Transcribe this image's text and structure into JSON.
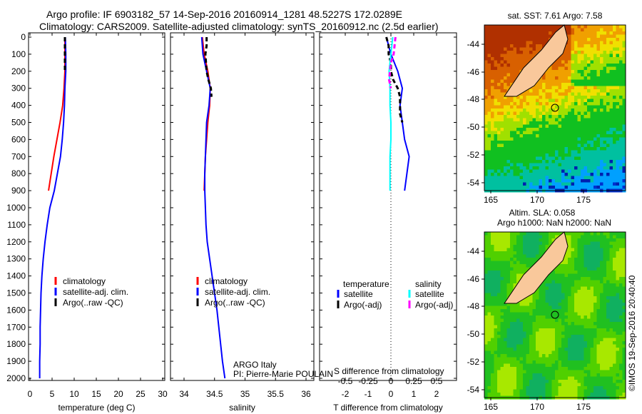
{
  "title": {
    "line1": "Argo profile: IF 6903182_57 14-Sep-2016 20160914_1281 48.5227S 172.0289E",
    "line2": "Climatology: CARS2009. Satellite-adjusted climatology: synTS_20160912.nc (2.5d earlier)"
  },
  "colors": {
    "climatology": "#ff0000",
    "satellite": "#0000ff",
    "argo": "#000000",
    "sal_satellite": "#00ffff",
    "sal_argo": "#ff00ff",
    "land": "#f9c89b"
  },
  "chart_data": [
    {
      "type": "line",
      "xlabel": "temperature (deg C)",
      "ylabel": "",
      "xlim": [
        -1,
        31
      ],
      "ylim": [
        2000,
        0
      ],
      "xticks": [
        "0",
        "5",
        "10",
        "15",
        "20",
        "25",
        "30"
      ],
      "yticks": [
        "0",
        "100",
        "200",
        "300",
        "400",
        "500",
        "600",
        "700",
        "800",
        "900",
        "1000",
        "1100",
        "1200",
        "1300",
        "1400",
        "1500",
        "1600",
        "1700",
        "1800",
        "1900",
        "2000"
      ],
      "legend": [
        "climatology",
        "satellite-adj. clim.",
        "Argo(..raw -QC)"
      ],
      "series": [
        {
          "name": "climatology",
          "depth": [
            0,
            100,
            200,
            300,
            400,
            500,
            600,
            700,
            800,
            900
          ],
          "values": [
            7.9,
            7.9,
            7.9,
            7.7,
            7.4,
            6.8,
            6.1,
            5.4,
            4.8,
            4.2
          ]
        },
        {
          "name": "satellite-adj. clim.",
          "depth": [
            0,
            100,
            200,
            300,
            400,
            500,
            600,
            700,
            800,
            900,
            1000,
            1100,
            1200,
            1300,
            1400,
            1500,
            1600,
            1700,
            1800,
            1900,
            2000
          ],
          "values": [
            8.0,
            8.1,
            8.1,
            7.9,
            7.8,
            7.6,
            7.3,
            6.9,
            6.2,
            5.5,
            4.5,
            3.9,
            3.4,
            3.0,
            2.7,
            2.5,
            2.4,
            2.3,
            2.3,
            2.2,
            2.2
          ]
        },
        {
          "name": "Argo(..raw -QC)",
          "depth": [
            0,
            50,
            100,
            150,
            200
          ],
          "values": [
            7.9,
            7.9,
            7.9,
            7.9,
            7.9
          ]
        }
      ]
    },
    {
      "type": "line",
      "xlabel": "salinity",
      "xlim": [
        33.78,
        36.13
      ],
      "ylim": [
        2000,
        0
      ],
      "xticks": [
        "34",
        "34.5",
        "35",
        "35.5",
        "36"
      ],
      "legend": [
        "climatology",
        "satellite-adj. clim.",
        "Argo(..raw -QC)"
      ],
      "annotation": [
        "ARGO Italy",
        "PI: Pierre-Marie POULAIN"
      ],
      "series": [
        {
          "name": "climatology",
          "depth": [
            0,
            100,
            200,
            300,
            400,
            500,
            600,
            700,
            800,
            900
          ],
          "values": [
            34.3,
            34.33,
            34.39,
            34.43,
            34.42,
            34.39,
            34.37,
            34.35,
            34.34,
            34.33
          ]
        },
        {
          "name": "satellite-adj. clim.",
          "depth": [
            0,
            100,
            200,
            300,
            400,
            500,
            600,
            700,
            800,
            900,
            1000,
            1100,
            1200,
            1300,
            1400,
            1500,
            1600,
            1700,
            1800,
            1900,
            2000
          ],
          "values": [
            34.29,
            34.31,
            34.37,
            34.43,
            34.41,
            34.37,
            34.36,
            34.35,
            34.34,
            34.34,
            34.35,
            34.36,
            34.38,
            34.42,
            34.46,
            34.5,
            34.54,
            34.57,
            34.6,
            34.63,
            34.67
          ]
        },
        {
          "name": "Argo(..raw -QC)",
          "depth": [
            0,
            50,
            100,
            150,
            200,
            250,
            300,
            350
          ],
          "values": [
            34.37,
            34.37,
            34.35,
            34.36,
            34.37,
            34.4,
            34.44,
            34.45
          ]
        }
      ]
    },
    {
      "type": "line",
      "xlabel": "T difference from climatology",
      "x2label": "S difference from climatology",
      "xlim": [
        -3.0,
        3.0
      ],
      "ylim": [
        2000,
        0
      ],
      "xticks": [
        "-2",
        "-1",
        "0",
        "1",
        "2"
      ],
      "x2ticks": [
        "-0.5",
        "-0.25",
        "0",
        "0.25",
        "0.5"
      ],
      "legend_titles": [
        "temperature",
        "salinity"
      ],
      "legend": [
        "satellite",
        "Argo(-adj)",
        "satellite",
        "Argo(-adj)"
      ],
      "series": [
        {
          "name": "temperature satellite",
          "axis": "T",
          "depth": [
            0,
            50,
            100,
            200,
            300,
            400,
            500,
            600,
            700,
            800,
            900
          ],
          "values": [
            -0.2,
            -0.1,
            0.0,
            0.3,
            0.5,
            0.4,
            0.5,
            0.6,
            0.8,
            0.7,
            0.6
          ]
        },
        {
          "name": "temperature Argo(-adj)",
          "axis": "T",
          "depth": [
            0,
            50,
            100,
            150,
            200,
            250,
            300,
            350,
            400,
            450,
            500
          ],
          "values": [
            -0.2,
            -0.1,
            -0.1,
            0.0,
            0.0,
            0.1,
            0.3,
            0.4,
            0.4,
            0.4,
            0.5
          ]
        },
        {
          "name": "salinity satellite",
          "axis": "S",
          "depth": [
            0,
            100,
            200,
            300,
            400,
            500,
            600,
            700,
            800,
            900
          ],
          "values": [
            0.02,
            0.0,
            -0.02,
            -0.01,
            -0.01,
            0.0,
            0.0,
            -0.01,
            -0.01,
            -0.01
          ]
        },
        {
          "name": "salinity Argo(-adj)",
          "axis": "S",
          "depth": [
            0,
            50,
            100,
            150,
            200,
            250,
            300
          ],
          "values": [
            0.05,
            0.04,
            0.03,
            0.0,
            -0.01,
            -0.02,
            0.0
          ]
        }
      ]
    }
  ],
  "maps": [
    {
      "title": "sat. SST: 7.61 Argo: 7.58",
      "lon_ticks": [
        "165",
        "170",
        "175"
      ],
      "lat_ticks": [
        "-44",
        "-46",
        "-48",
        "-50",
        "-52",
        "-54"
      ]
    },
    {
      "title1": "Altim. SLA: 0.058",
      "title2": "Argo h1000: NaN h2000: NaN",
      "lon_ticks": [
        "165",
        "170",
        "175"
      ],
      "lat_ticks": [
        "-44",
        "-46",
        "-48",
        "-50",
        "-52",
        "-54"
      ]
    }
  ],
  "credit": "©IMOS 19-Sep-2016 20:40:40"
}
